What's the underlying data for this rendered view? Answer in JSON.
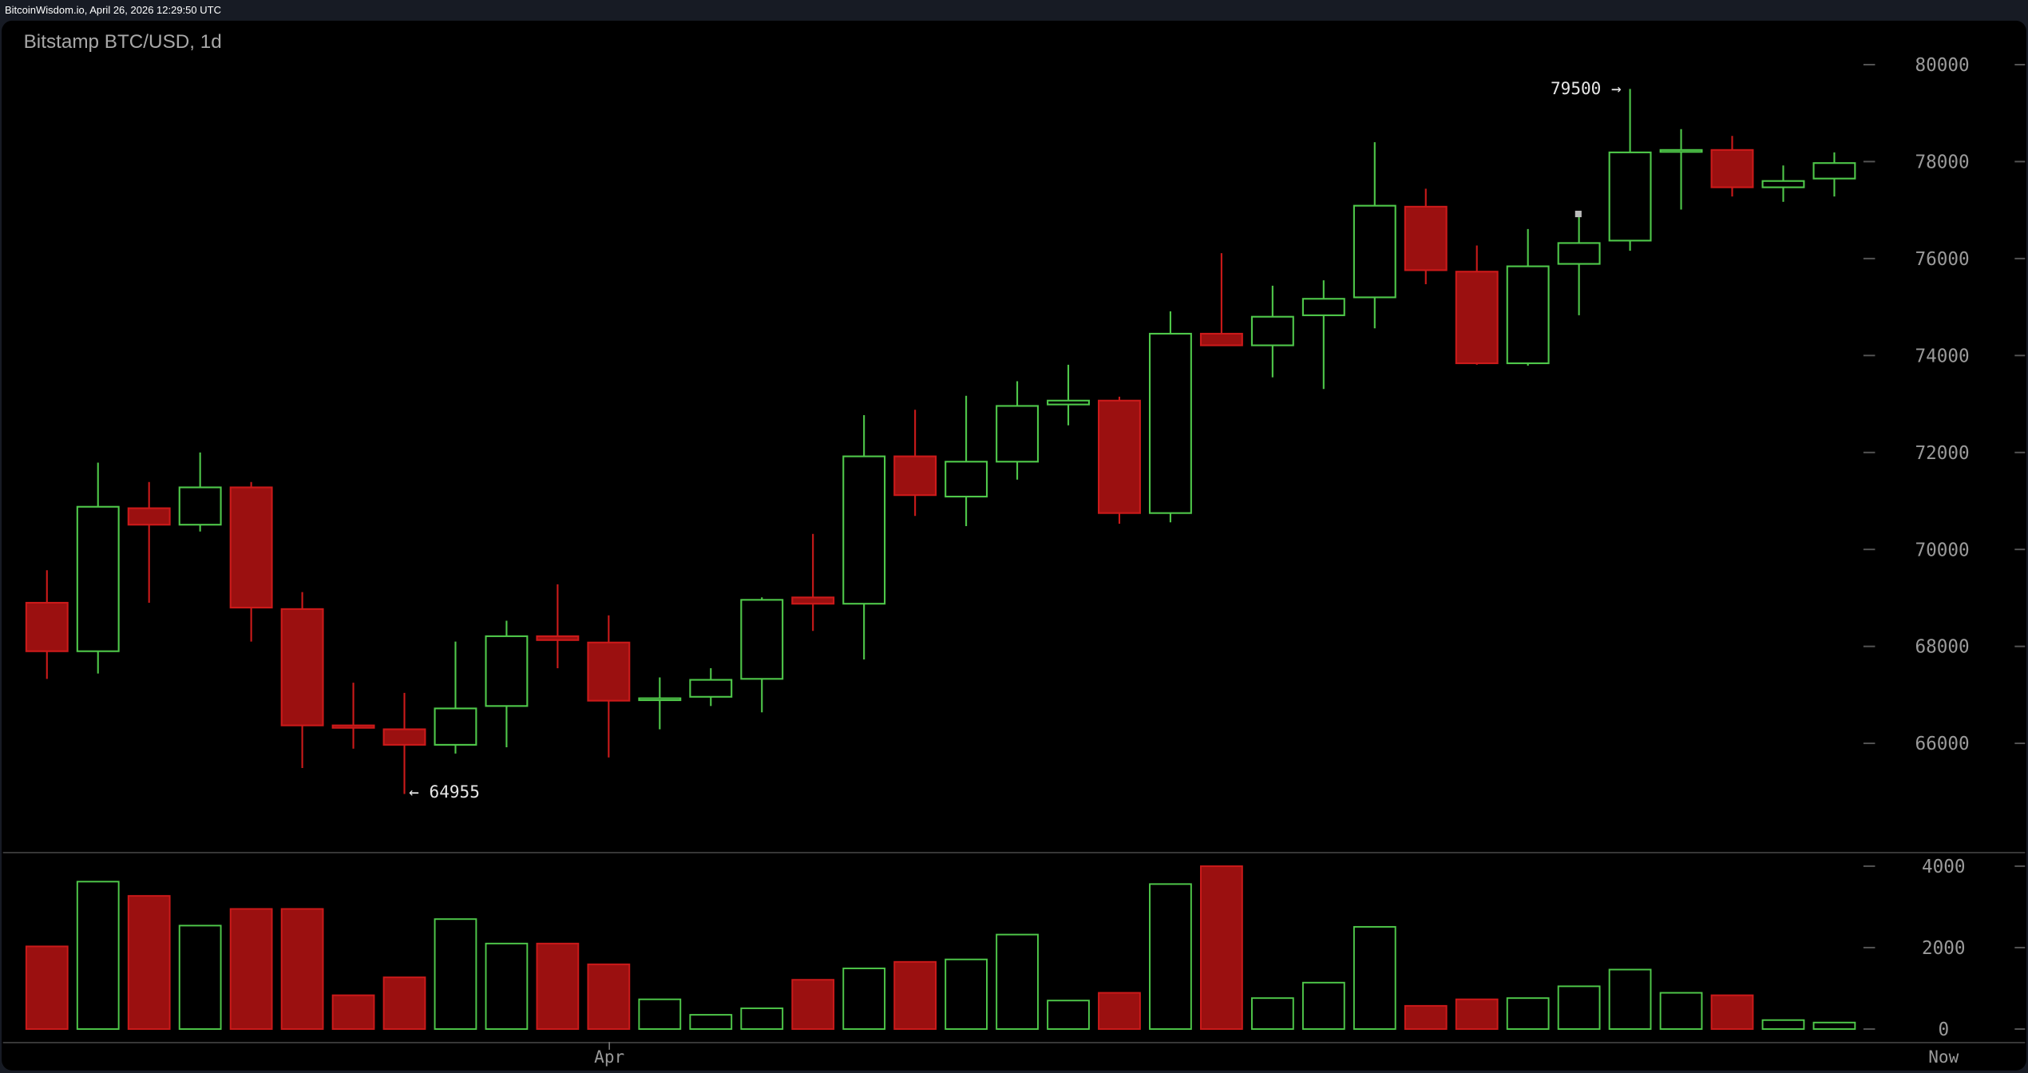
{
  "header": {
    "source": "BitcoinWisdom.io, April 26, 2026 12:29:50 UTC"
  },
  "chart_data": {
    "type": "candlestick",
    "title": "Bitstamp BTC/USD, 1d",
    "price_ylim": [
      64000,
      80500
    ],
    "price_ticks": [
      "80000",
      "78000",
      "76000",
      "74000",
      "72000",
      "70000",
      "68000",
      "66000"
    ],
    "volume_ylim": [
      0,
      4000
    ],
    "volume_ticks": [
      "4000",
      "2000",
      "0"
    ],
    "x_labels": [
      {
        "label": "Apr",
        "index": 11
      },
      {
        "label": "Now",
        "index": 37
      }
    ],
    "annotations": {
      "high": "79500 →",
      "low": "← 64955"
    },
    "colors": {
      "up": "#4fc84a",
      "down": "#9b1010",
      "down_edge": "#cc1a1a",
      "background": "#000000",
      "text": "#9a9a9a"
    },
    "candles": [
      {
        "o": 68900,
        "h": 69570,
        "l": 67330,
        "c": 67900,
        "v": 2030
      },
      {
        "o": 67900,
        "h": 71790,
        "l": 67440,
        "c": 70880,
        "v": 3620
      },
      {
        "o": 70850,
        "h": 71390,
        "l": 68900,
        "c": 70510,
        "v": 3270
      },
      {
        "o": 70510,
        "h": 72000,
        "l": 70370,
        "c": 71280,
        "v": 2540
      },
      {
        "o": 71280,
        "h": 71390,
        "l": 68100,
        "c": 68800,
        "v": 2950
      },
      {
        "o": 68770,
        "h": 69120,
        "l": 65490,
        "c": 66370,
        "v": 2950
      },
      {
        "o": 66370,
        "h": 67250,
        "l": 65890,
        "c": 66320,
        "v": 830
      },
      {
        "o": 66290,
        "h": 67040,
        "l": 64955,
        "c": 65970,
        "v": 1270
      },
      {
        "o": 65970,
        "h": 68100,
        "l": 65790,
        "c": 66720,
        "v": 2700
      },
      {
        "o": 66770,
        "h": 68530,
        "l": 65920,
        "c": 68210,
        "v": 2100
      },
      {
        "o": 68210,
        "h": 69280,
        "l": 67550,
        "c": 68130,
        "v": 2100
      },
      {
        "o": 68080,
        "h": 68640,
        "l": 65710,
        "c": 66880,
        "v": 1590
      },
      {
        "o": 66900,
        "h": 67360,
        "l": 66290,
        "c": 66930,
        "v": 730
      },
      {
        "o": 66960,
        "h": 67550,
        "l": 66770,
        "c": 67310,
        "v": 350
      },
      {
        "o": 67330,
        "h": 69010,
        "l": 66640,
        "c": 68960,
        "v": 510
      },
      {
        "o": 69010,
        "h": 70320,
        "l": 68320,
        "c": 68880,
        "v": 1210
      },
      {
        "o": 68880,
        "h": 72770,
        "l": 67730,
        "c": 71920,
        "v": 1490
      },
      {
        "o": 71920,
        "h": 72880,
        "l": 70690,
        "c": 71120,
        "v": 1650
      },
      {
        "o": 71090,
        "h": 73170,
        "l": 70480,
        "c": 71810,
        "v": 1710
      },
      {
        "o": 71810,
        "h": 73470,
        "l": 71440,
        "c": 72960,
        "v": 2320
      },
      {
        "o": 72990,
        "h": 73810,
        "l": 72560,
        "c": 73070,
        "v": 700
      },
      {
        "o": 73070,
        "h": 73150,
        "l": 70530,
        "c": 70750,
        "v": 890
      },
      {
        "o": 70750,
        "h": 74910,
        "l": 70560,
        "c": 74450,
        "v": 3560
      },
      {
        "o": 74450,
        "h": 76110,
        "l": 74210,
        "c": 74210,
        "v": 4000
      },
      {
        "o": 74210,
        "h": 75440,
        "l": 73550,
        "c": 74800,
        "v": 760
      },
      {
        "o": 74830,
        "h": 75550,
        "l": 73310,
        "c": 75170,
        "v": 1140
      },
      {
        "o": 75200,
        "h": 78400,
        "l": 74560,
        "c": 77090,
        "v": 2510
      },
      {
        "o": 77070,
        "h": 77440,
        "l": 75470,
        "c": 75760,
        "v": 570
      },
      {
        "o": 75730,
        "h": 76270,
        "l": 73810,
        "c": 73840,
        "v": 730
      },
      {
        "o": 73840,
        "h": 76610,
        "l": 73790,
        "c": 75840,
        "v": 760
      },
      {
        "o": 75890,
        "h": 76930,
        "l": 74830,
        "c": 76320,
        "v": 1050
      },
      {
        "o": 76370,
        "h": 79500,
        "l": 76160,
        "c": 78190,
        "v": 1460
      },
      {
        "o": 78200,
        "h": 78670,
        "l": 77010,
        "c": 78240,
        "v": 890
      },
      {
        "o": 78240,
        "h": 78530,
        "l": 77280,
        "c": 77470,
        "v": 830
      },
      {
        "o": 77470,
        "h": 77920,
        "l": 77170,
        "c": 77600,
        "v": 220
      },
      {
        "o": 77650,
        "h": 78190,
        "l": 77280,
        "c": 77970,
        "v": 160
      }
    ]
  }
}
